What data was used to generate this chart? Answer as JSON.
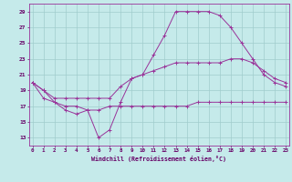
{
  "xlabel": "Windchill (Refroidissement éolien,°C)",
  "bg_color": "#c5eaea",
  "line_color": "#993399",
  "grid_color": "#a0cccc",
  "yticks": [
    13,
    15,
    17,
    19,
    21,
    23,
    25,
    27,
    29
  ],
  "xticks": [
    0,
    1,
    2,
    3,
    4,
    5,
    6,
    7,
    8,
    9,
    10,
    11,
    12,
    13,
    14,
    15,
    16,
    17,
    18,
    19,
    20,
    21,
    22,
    23
  ],
  "curve1_x": [
    0,
    1,
    2,
    3,
    4,
    5,
    6,
    7,
    8,
    9,
    10,
    11,
    12,
    13,
    14,
    15,
    16,
    17,
    18,
    19,
    20,
    21,
    22,
    23
  ],
  "curve1_y": [
    20.0,
    19.0,
    17.5,
    16.5,
    16.0,
    16.5,
    13.0,
    14.0,
    17.5,
    20.5,
    21.0,
    23.5,
    26.0,
    29.0,
    29.0,
    29.0,
    29.0,
    28.5,
    27.0,
    25.0,
    23.0,
    21.0,
    20.0,
    19.5
  ],
  "curve2_x": [
    0,
    1,
    2,
    3,
    4,
    5,
    6,
    7,
    8,
    9,
    10,
    11,
    12,
    13,
    14,
    15,
    16,
    17,
    18,
    19,
    20,
    21,
    22,
    23
  ],
  "curve2_y": [
    20.0,
    19.0,
    18.0,
    18.0,
    18.0,
    18.0,
    18.0,
    18.0,
    19.5,
    20.5,
    21.0,
    21.5,
    22.0,
    22.5,
    22.5,
    22.5,
    22.5,
    22.5,
    23.0,
    23.0,
    22.5,
    21.5,
    20.5,
    20.0
  ],
  "curve3_x": [
    0,
    1,
    2,
    3,
    4,
    5,
    6,
    7,
    8,
    9,
    10,
    11,
    12,
    13,
    14,
    15,
    16,
    17,
    18,
    19,
    20,
    21,
    22,
    23
  ],
  "curve3_y": [
    20.0,
    18.0,
    17.5,
    17.0,
    17.0,
    16.5,
    16.5,
    17.0,
    17.0,
    17.0,
    17.0,
    17.0,
    17.0,
    17.0,
    17.0,
    17.5,
    17.5,
    17.5,
    17.5,
    17.5,
    17.5,
    17.5,
    17.5,
    17.5
  ]
}
